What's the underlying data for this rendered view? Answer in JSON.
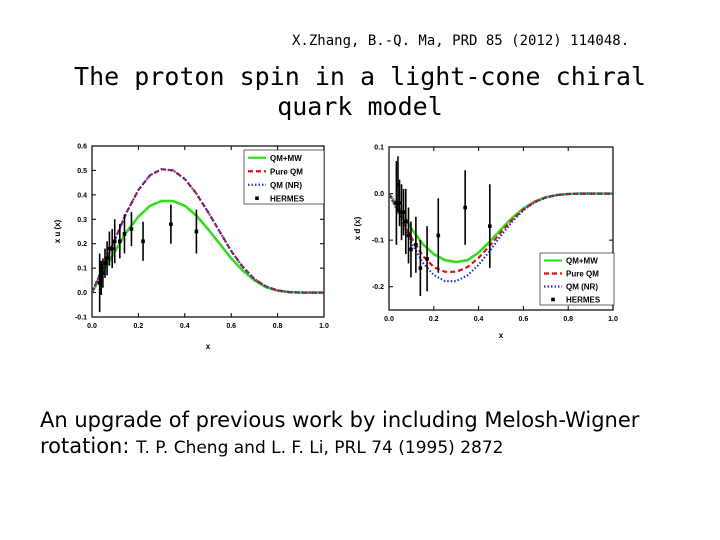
{
  "header": {
    "citation": "X.Zhang, B.-Q. Ma, PRD 85 (2012) 114048.",
    "title_line1": "The proton spin in a light-cone chiral",
    "title_line2": "quark model"
  },
  "caption": {
    "line1": "An upgrade of previous work by including Melosh-Wigner",
    "line2_prefix": "rotation: ",
    "line2_ref": "T. P. Cheng and L. F. Li, PRL 74 (1995) 2872"
  },
  "colors": {
    "qm_mw": "#33dd22",
    "pure_qm": "#dd1111",
    "qm_nr": "#2233cc",
    "hermes": "#000000"
  },
  "chart_data": [
    {
      "type": "line",
      "xlabel": "x",
      "ylabel": "x u (x)",
      "xlim": [
        0.0,
        1.0
      ],
      "ylim": [
        -0.1,
        0.6
      ],
      "xticks": [
        "0.0",
        "0.2",
        "0.4",
        "0.6",
        "0.8",
        "1.0"
      ],
      "yticks": [
        "-0.1",
        "0.0",
        "0.1",
        "0.2",
        "0.3",
        "0.4",
        "0.5",
        "0.6"
      ],
      "legend_position": "top-right",
      "series": [
        {
          "name": "QM+MW",
          "style": "solid",
          "x": [
            0.0,
            0.05,
            0.1,
            0.15,
            0.2,
            0.25,
            0.3,
            0.35,
            0.4,
            0.45,
            0.5,
            0.55,
            0.6,
            0.65,
            0.7,
            0.75,
            0.8,
            0.85,
            0.9,
            0.95,
            1.0
          ],
          "y": [
            0.0,
            0.09,
            0.17,
            0.25,
            0.31,
            0.355,
            0.375,
            0.375,
            0.355,
            0.315,
            0.26,
            0.2,
            0.14,
            0.09,
            0.05,
            0.022,
            0.008,
            0.002,
            0.0,
            0.0,
            0.0
          ]
        },
        {
          "name": "Pure QM",
          "style": "dashed",
          "x": [
            0.0,
            0.05,
            0.1,
            0.15,
            0.2,
            0.25,
            0.3,
            0.35,
            0.4,
            0.45,
            0.5,
            0.55,
            0.6,
            0.65,
            0.7,
            0.75,
            0.8,
            0.85,
            0.9,
            0.95,
            1.0
          ],
          "y": [
            0.0,
            0.11,
            0.22,
            0.33,
            0.42,
            0.48,
            0.505,
            0.5,
            0.465,
            0.405,
            0.33,
            0.25,
            0.17,
            0.105,
            0.055,
            0.025,
            0.009,
            0.002,
            0.0,
            0.0,
            0.0
          ]
        },
        {
          "name": "QM (NR)",
          "style": "dotted",
          "x": [
            0.0,
            0.05,
            0.1,
            0.15,
            0.2,
            0.25,
            0.3,
            0.35,
            0.4,
            0.45,
            0.5,
            0.55,
            0.6,
            0.65,
            0.7,
            0.75,
            0.8,
            0.85,
            0.9,
            0.95,
            1.0
          ],
          "y": [
            0.0,
            0.11,
            0.22,
            0.33,
            0.42,
            0.48,
            0.505,
            0.5,
            0.465,
            0.405,
            0.33,
            0.25,
            0.17,
            0.105,
            0.055,
            0.025,
            0.009,
            0.002,
            0.0,
            0.0,
            0.0
          ]
        },
        {
          "name": "HERMES",
          "style": "points",
          "x": [
            0.033,
            0.04,
            0.047,
            0.056,
            0.065,
            0.075,
            0.087,
            0.098,
            0.12,
            0.14,
            0.17,
            0.22,
            0.34,
            0.45
          ],
          "y": [
            0.04,
            0.06,
            0.08,
            0.12,
            0.14,
            0.18,
            0.18,
            0.21,
            0.21,
            0.24,
            0.26,
            0.21,
            0.28,
            0.25
          ],
          "err": [
            0.12,
            0.07,
            0.06,
            0.06,
            0.07,
            0.07,
            0.08,
            0.09,
            0.07,
            0.08,
            0.07,
            0.08,
            0.08,
            0.09
          ]
        }
      ]
    },
    {
      "type": "line",
      "xlabel": "x",
      "ylabel": "x d (x)",
      "xlim": [
        0.0,
        1.0
      ],
      "ylim": [
        -0.25,
        0.1
      ],
      "xticks": [
        "0.0",
        "0.2",
        "0.4",
        "0.6",
        "0.8",
        "1.0"
      ],
      "yticks": [
        "-0.2",
        "-0.1",
        "0.0",
        "0.1"
      ],
      "ytick_values": [
        -0.2,
        -0.1,
        0.0,
        0.1
      ],
      "legend_position": "bottom-right",
      "series": [
        {
          "name": "QM+MW",
          "style": "solid",
          "x": [
            0.0,
            0.05,
            0.1,
            0.15,
            0.2,
            0.25,
            0.3,
            0.35,
            0.4,
            0.45,
            0.5,
            0.55,
            0.6,
            0.65,
            0.7,
            0.75,
            0.8,
            0.85,
            0.9,
            0.95,
            1.0
          ],
          "y": [
            0.0,
            -0.035,
            -0.075,
            -0.108,
            -0.13,
            -0.143,
            -0.147,
            -0.143,
            -0.127,
            -0.103,
            -0.077,
            -0.052,
            -0.032,
            -0.017,
            -0.008,
            -0.003,
            -0.001,
            0.0,
            0.0,
            0.0,
            0.0
          ]
        },
        {
          "name": "Pure QM",
          "style": "dashed",
          "x": [
            0.0,
            0.05,
            0.1,
            0.15,
            0.2,
            0.25,
            0.3,
            0.35,
            0.4,
            0.45,
            0.5,
            0.55,
            0.6,
            0.65,
            0.7,
            0.75,
            0.8,
            0.85,
            0.9,
            0.95,
            1.0
          ],
          "y": [
            0.0,
            -0.045,
            -0.095,
            -0.133,
            -0.158,
            -0.168,
            -0.168,
            -0.158,
            -0.138,
            -0.112,
            -0.083,
            -0.056,
            -0.034,
            -0.018,
            -0.008,
            -0.003,
            -0.001,
            0.0,
            0.0,
            0.0,
            0.0
          ]
        },
        {
          "name": "QM (NR)",
          "style": "dotted",
          "x": [
            0.0,
            0.05,
            0.1,
            0.15,
            0.2,
            0.25,
            0.3,
            0.35,
            0.4,
            0.45,
            0.5,
            0.55,
            0.6,
            0.65,
            0.7,
            0.75,
            0.8,
            0.85,
            0.9,
            0.95,
            1.0
          ],
          "y": [
            0.0,
            -0.05,
            -0.105,
            -0.148,
            -0.175,
            -0.188,
            -0.188,
            -0.176,
            -0.153,
            -0.123,
            -0.09,
            -0.06,
            -0.036,
            -0.019,
            -0.009,
            -0.003,
            -0.001,
            0.0,
            0.0,
            0.0,
            0.0
          ]
        },
        {
          "name": "HERMES",
          "style": "points",
          "x": [
            0.033,
            0.04,
            0.047,
            0.056,
            0.065,
            0.075,
            0.087,
            0.098,
            0.12,
            0.14,
            0.17,
            0.22,
            0.34,
            0.45
          ],
          "y": [
            -0.02,
            0.02,
            -0.02,
            -0.04,
            -0.04,
            -0.06,
            -0.09,
            -0.12,
            -0.11,
            -0.16,
            -0.14,
            -0.09,
            -0.03,
            -0.07
          ],
          "err": [
            0.09,
            0.06,
            0.05,
            0.06,
            0.05,
            0.07,
            0.06,
            0.06,
            0.06,
            0.06,
            0.07,
            0.08,
            0.08,
            0.09
          ]
        }
      ]
    }
  ]
}
